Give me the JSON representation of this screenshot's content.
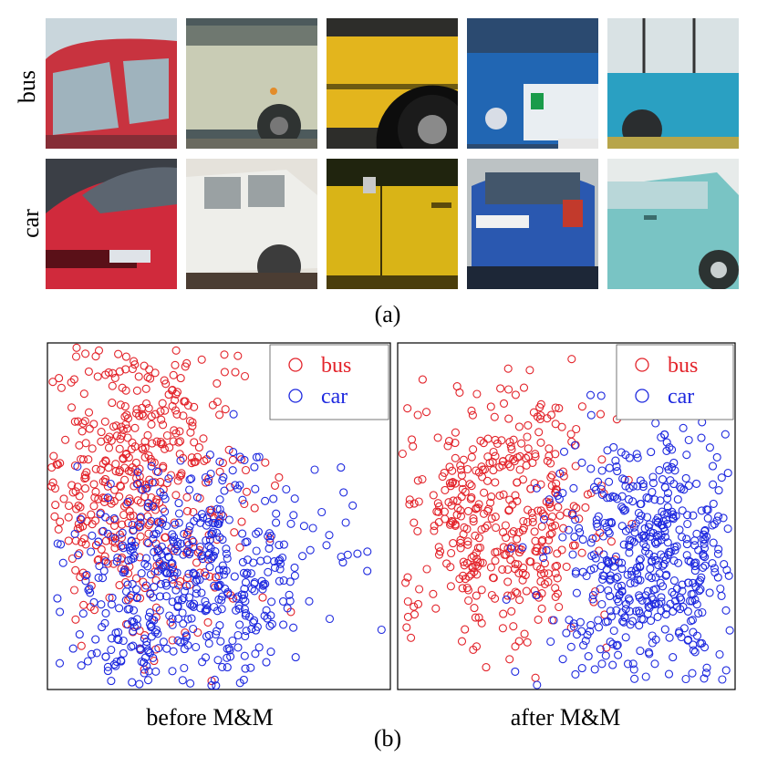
{
  "figure_a": {
    "row_labels": [
      "bus",
      "car"
    ],
    "caption": "(a)",
    "rows": [
      {
        "label": "bus",
        "images": [
          {
            "name": "bus-photo-red-front",
            "colors": {
              "sky": "#c9d6dc",
              "body": "#c8333f",
              "window": "#9fb3bd",
              "dark": "#5a2a30"
            }
          },
          {
            "name": "bus-photo-grey-side",
            "colors": {
              "sky": "#4d5a5c",
              "body": "#c9ccb5",
              "window": "#6f7870",
              "dark": "#2f3332"
            }
          },
          {
            "name": "bus-photo-yellow-wheel",
            "colors": {
              "sky": "#2d2d2a",
              "body": "#e3b51d",
              "window": "#1d1d1d",
              "dark": "#0d0d0d"
            }
          },
          {
            "name": "bus-photo-blue-front",
            "colors": {
              "sky": "#2b4a70",
              "body": "#2166b3",
              "window": "#e9eef2",
              "dark": "#1a2b48"
            }
          },
          {
            "name": "bus-photo-teal-side",
            "colors": {
              "sky": "#7c8b95",
              "body": "#2aa0c2",
              "window": "#d9e2e4",
              "dark": "#2a2d2f"
            }
          }
        ]
      },
      {
        "label": "car",
        "images": [
          {
            "name": "car-photo-red-sports",
            "colors": {
              "sky": "#3b3f46",
              "body": "#d02a3c",
              "window": "#5c6570",
              "dark": "#5a1018"
            }
          },
          {
            "name": "car-photo-white-pickup",
            "colors": {
              "sky": "#e5e2db",
              "body": "#eeeeea",
              "window": "#9aa1a3",
              "dark": "#4b3d33"
            }
          },
          {
            "name": "car-photo-yellow-door",
            "colors": {
              "sky": "#2d2a1f",
              "body": "#d9b417",
              "window": "#20240e",
              "dark": "#4a3d0c"
            }
          },
          {
            "name": "car-photo-blue-rear",
            "colors": {
              "sky": "#bcc2c4",
              "body": "#2a58b0",
              "window": "#43566b",
              "dark": "#1d2737"
            }
          },
          {
            "name": "car-photo-teal-van",
            "colors": {
              "sky": "#e7ebea",
              "body": "#79c4c4",
              "window": "#b9d7d9",
              "dark": "#2c3332"
            }
          }
        ]
      }
    ]
  },
  "figure_b": {
    "caption": "(b)",
    "colors": {
      "bus": "#e3242b",
      "car": "#1f2adf"
    },
    "chart_data": [
      {
        "type": "scatter",
        "title": "before M&M",
        "legend": {
          "position": "top-right",
          "entries": [
            "bus",
            "car"
          ]
        },
        "series": [
          {
            "name": "bus",
            "color": "#e3242b",
            "count": 450,
            "center": [
              0.26,
              0.62
            ],
            "spread": [
              0.15,
              0.22
            ],
            "range_x": [
              0.0,
              1.0
            ],
            "range_y": [
              0.0,
              1.0
            ]
          },
          {
            "name": "car",
            "color": "#1f2adf",
            "count": 520,
            "center": [
              0.42,
              0.3
            ],
            "spread": [
              0.19,
              0.17
            ],
            "range_x": [
              0.0,
              1.0
            ],
            "range_y": [
              0.0,
              1.0
            ]
          }
        ],
        "xlabel": "",
        "ylabel": "",
        "grid": false
      },
      {
        "type": "scatter",
        "title": "after M&M",
        "legend": {
          "position": "top-right",
          "entries": [
            "bus",
            "car"
          ]
        },
        "series": [
          {
            "name": "bus",
            "color": "#e3242b",
            "count": 420,
            "center": [
              0.3,
              0.5
            ],
            "spread": [
              0.16,
              0.18
            ],
            "range_x": [
              0.0,
              1.0
            ],
            "range_y": [
              0.0,
              1.0
            ]
          },
          {
            "name": "car",
            "color": "#1f2adf",
            "count": 500,
            "center": [
              0.74,
              0.37
            ],
            "spread": [
              0.15,
              0.2
            ],
            "range_x": [
              0.0,
              1.0
            ],
            "range_y": [
              0.0,
              1.0
            ]
          }
        ],
        "xlabel": "",
        "ylabel": "",
        "grid": false
      }
    ]
  }
}
